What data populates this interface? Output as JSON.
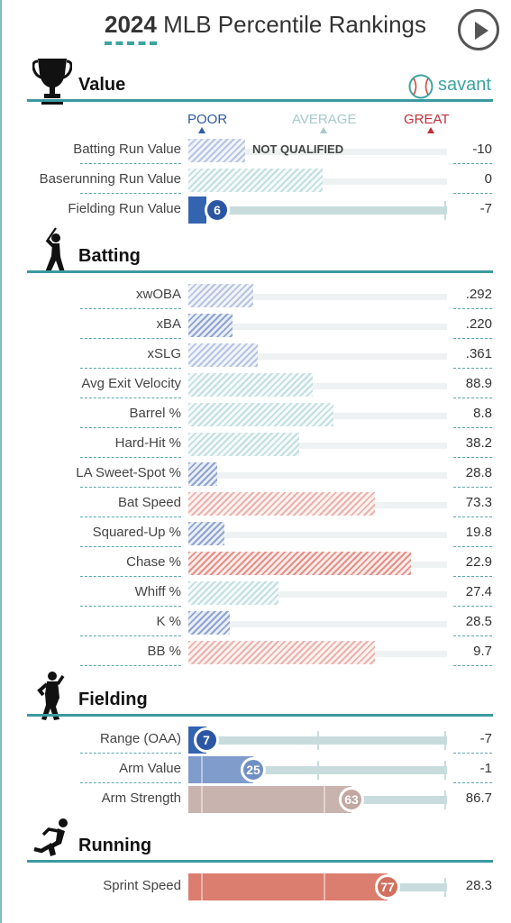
{
  "header": {
    "year": "2024",
    "title": "MLB Percentile Rankings"
  },
  "brand": {
    "name": "savant",
    "accent": "#3aa4a0"
  },
  "scale": {
    "poor": "POOR",
    "average": "AVERAGE",
    "great": "GREAT"
  },
  "colors": {
    "poor": "#2f5aa8",
    "average": "#a8cacc",
    "great": "#c0303a"
  },
  "sections": {
    "value": {
      "title": "Value",
      "icon": "trophy-icon"
    },
    "batting": {
      "title": "Batting",
      "icon": "batter-icon"
    },
    "fielding": {
      "title": "Fielding",
      "icon": "fielder-icon"
    },
    "running": {
      "title": "Running",
      "icon": "runner-icon"
    }
  },
  "value_rows": [
    {
      "label": "Batting Run Value",
      "value": "-10",
      "note": "NOT QUALIFIED",
      "percentile": 22
    },
    {
      "label": "Baserunning Run Value",
      "value": "0",
      "percentile": 52
    },
    {
      "label": "Fielding Run Value",
      "value": "-7",
      "percentile": 6
    }
  ],
  "batting_rows": [
    {
      "label": "xwOBA",
      "value": ".292",
      "percentile": 25
    },
    {
      "label": "xBA",
      "value": ".220",
      "percentile": 17
    },
    {
      "label": "xSLG",
      "value": ".361",
      "percentile": 27
    },
    {
      "label": "Avg Exit Velocity",
      "value": "88.9",
      "percentile": 48
    },
    {
      "label": "Barrel %",
      "value": "8.8",
      "percentile": 56
    },
    {
      "label": "Hard-Hit %",
      "value": "38.2",
      "percentile": 43
    },
    {
      "label": "LA Sweet-Spot %",
      "value": "28.8",
      "percentile": 11
    },
    {
      "label": "Bat Speed",
      "value": "73.3",
      "percentile": 72
    },
    {
      "label": "Squared-Up %",
      "value": "19.8",
      "percentile": 14
    },
    {
      "label": "Chase %",
      "value": "22.9",
      "percentile": 86
    },
    {
      "label": "Whiff %",
      "value": "27.4",
      "percentile": 35
    },
    {
      "label": "K %",
      "value": "28.5",
      "percentile": 16
    },
    {
      "label": "BB %",
      "value": "9.7",
      "percentile": 72
    }
  ],
  "fielding_rows": [
    {
      "label": "Range (OAA)",
      "value": "-7",
      "percentile": 7,
      "badge": "7"
    },
    {
      "label": "Arm Value",
      "value": "-1",
      "percentile": 25,
      "badge": "25"
    },
    {
      "label": "Arm Strength",
      "value": "86.7",
      "percentile": 63,
      "badge": "63"
    }
  ],
  "running_rows": [
    {
      "label": "Sprint Speed",
      "value": "28.3",
      "percentile": 77,
      "badge": "77"
    }
  ]
}
